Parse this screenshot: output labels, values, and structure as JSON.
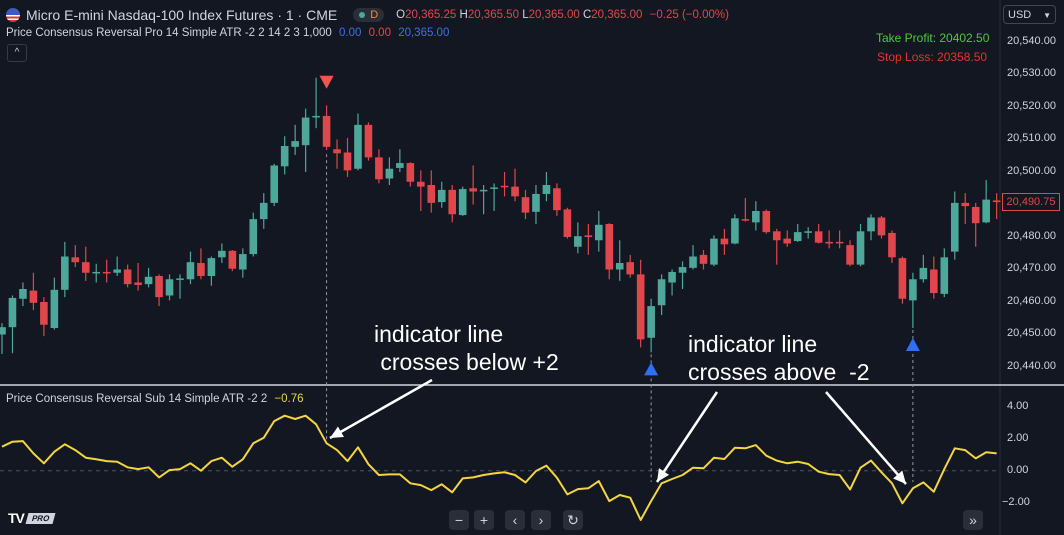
{
  "header": {
    "symbol_title": "Micro E-mini Nasdaq-100 Index Futures · 1 · CME",
    "session_badge": "D",
    "ohlc": {
      "o_label": "O",
      "o": "20,365.25",
      "h_label": "H",
      "h": "20,365.50",
      "l_label": "L",
      "l": "20,365.00",
      "c_label": "C",
      "c": "20,365.00",
      "change": "−0.25 (−0.00%)"
    },
    "indicator_main": {
      "name": "Price Consensus Reversal Pro 14 Simple ATR -2 2 14 2 3 1,000",
      "v1": "0.00",
      "v2": "0.00",
      "v3": "20,365.00"
    },
    "collapse_icon": "chevron-up-icon"
  },
  "currency": "USD",
  "take_profit": "Take Profit: 20402.50",
  "stop_loss": "Stop Loss: 20358.50",
  "price_axis": [
    "20,540.00",
    "20,530.00",
    "20,520.00",
    "20,510.00",
    "20,500.00",
    "20,480.00",
    "20,470.00",
    "20,460.00",
    "20,450.00",
    "20,440.00"
  ],
  "current_price": "20,490.75",
  "sub_pane": {
    "legend": "Price Consensus Reversal Sub 14 Simple ATR -2 2",
    "value": "−0.76",
    "axis": [
      "4.00",
      "2.00",
      "0.00",
      "−2.00"
    ]
  },
  "annotations": {
    "a1": "indicator line\n crosses below +2",
    "a2": "indicator line\ncrosses above  -2"
  },
  "toolbar": {
    "zoom_out": "−",
    "zoom_in": "+",
    "scroll_left": "‹",
    "scroll_right": "›",
    "reset": "↻",
    "go_latest": "»"
  },
  "logo": "TV PRO",
  "colors": {
    "bg": "#131722",
    "up": "#4ea79b",
    "down": "#e0474c",
    "indicator": "#f2d641",
    "buy": "#2f6ef5",
    "sell": "#f05650",
    "tp": "#4cc93b",
    "sl": "#e03535"
  },
  "chart_data": {
    "type": "candlestick",
    "ylim": [
      20437,
      20543
    ],
    "candles": [
      [
        20450,
        20453.5,
        20444,
        20452.25
      ],
      [
        20452.25,
        20462,
        20444.25,
        20461.25
      ],
      [
        20461,
        20466,
        20458.75,
        20464
      ],
      [
        20463.5,
        20469,
        20457.5,
        20459.75
      ],
      [
        20460,
        20461.5,
        20449.5,
        20453
      ],
      [
        20452,
        20467.5,
        20451.5,
        20463.75
      ],
      [
        20463.75,
        20478.5,
        20461.5,
        20474
      ],
      [
        20473.75,
        20477.5,
        20470.75,
        20472.25
      ],
      [
        20472.25,
        20477,
        20466.5,
        20469
      ],
      [
        20469,
        20471.75,
        20466,
        20469.25
      ],
      [
        20469.25,
        20473,
        20466,
        20469
      ],
      [
        20469,
        20474,
        20468,
        20470
      ],
      [
        20470,
        20471.5,
        20464.5,
        20465.5
      ],
      [
        20466,
        20472,
        20463.5,
        20465.25
      ],
      [
        20465.5,
        20470.5,
        20464.5,
        20467.75
      ],
      [
        20468,
        20468.5,
        20458.75,
        20461.5
      ],
      [
        20462,
        20468.5,
        20460.5,
        20467
      ],
      [
        20467,
        20468.5,
        20461,
        20467.25
      ],
      [
        20467,
        20475.5,
        20465.5,
        20472.25
      ],
      [
        20472,
        20476.5,
        20467,
        20468
      ],
      [
        20468,
        20474,
        20465,
        20473.5
      ],
      [
        20473.75,
        20478,
        20472,
        20475.75
      ],
      [
        20475.75,
        20476,
        20469.5,
        20470.25
      ],
      [
        20470,
        20476.5,
        20467.5,
        20474.75
      ],
      [
        20474.75,
        20487.5,
        20474,
        20485.5
      ],
      [
        20485.5,
        20493.5,
        20482.5,
        20490.5
      ],
      [
        20490.5,
        20502.5,
        20489.5,
        20502
      ],
      [
        20501.75,
        20511,
        20499.25,
        20508
      ],
      [
        20507.75,
        20514.5,
        20505.25,
        20509.5
      ],
      [
        20508.25,
        20519.5,
        20500,
        20516.75
      ],
      [
        20517,
        20529,
        20513.5,
        20517.25
      ],
      [
        20517.25,
        20520.5,
        20506.75,
        20507.75
      ],
      [
        20507,
        20510,
        20501,
        20505.75
      ],
      [
        20506,
        20510.5,
        20498.5,
        20500.5
      ],
      [
        20501,
        20518,
        20500.5,
        20514.5
      ],
      [
        20514.5,
        20515.25,
        20503.5,
        20504.5
      ],
      [
        20504.5,
        20507,
        20496.5,
        20497.75
      ],
      [
        20498,
        20504.5,
        20496,
        20501
      ],
      [
        20501.25,
        20507,
        20500,
        20502.75
      ],
      [
        20502.75,
        20503,
        20495.5,
        20497
      ],
      [
        20497,
        20500.5,
        20488,
        20495.5
      ],
      [
        20496,
        20500.5,
        20487.5,
        20490.5
      ],
      [
        20490.75,
        20497,
        20489,
        20494.5
      ],
      [
        20494.5,
        20496,
        20484.5,
        20487
      ],
      [
        20486.75,
        20495.5,
        20486.5,
        20494.75
      ],
      [
        20495,
        20502,
        20490,
        20494
      ],
      [
        20494.25,
        20496,
        20487,
        20494.5
      ],
      [
        20495,
        20496.5,
        20488,
        20495.25
      ],
      [
        20495.75,
        20500,
        20492.5,
        20495.5
      ],
      [
        20495.5,
        20501,
        20491,
        20492.5
      ],
      [
        20492.25,
        20494.5,
        20485.5,
        20487.5
      ],
      [
        20487.75,
        20496,
        20484,
        20493.25
      ],
      [
        20493.25,
        20500,
        20491,
        20496
      ],
      [
        20495,
        20496.5,
        20486.5,
        20488.25
      ],
      [
        20488.5,
        20489,
        20479.5,
        20480
      ],
      [
        20477,
        20484.5,
        20475,
        20480.25
      ],
      [
        20480.5,
        20484,
        20474.5,
        20480
      ],
      [
        20479,
        20488,
        20475.5,
        20483.75
      ],
      [
        20484,
        20484.25,
        20467,
        20470
      ],
      [
        20470,
        20479,
        20466.5,
        20472
      ],
      [
        20472.25,
        20474.5,
        20467.5,
        20468.5
      ],
      [
        20468.5,
        20473,
        20446,
        20448.5
      ],
      [
        20449,
        20461,
        20444.5,
        20458.75
      ],
      [
        20459,
        20468.5,
        20456,
        20467
      ],
      [
        20466,
        20470,
        20462,
        20469.25
      ],
      [
        20469,
        20472.5,
        20464,
        20470.75
      ],
      [
        20470.5,
        20477.5,
        20470,
        20474
      ],
      [
        20474.5,
        20476,
        20470,
        20471.75
      ],
      [
        20471.5,
        20480.5,
        20471,
        20479.5
      ],
      [
        20479.5,
        20482.5,
        20474.5,
        20477.75
      ],
      [
        20478,
        20487,
        20477.75,
        20485.75
      ],
      [
        20485.5,
        20492,
        20484.75,
        20485.25
      ],
      [
        20484.5,
        20491,
        20482,
        20488
      ],
      [
        20488,
        20488.5,
        20481,
        20481.5
      ],
      [
        20481.75,
        20482.5,
        20471.5,
        20479
      ],
      [
        20479.5,
        20482,
        20477,
        20478
      ],
      [
        20478.75,
        20484,
        20478.5,
        20481.5
      ],
      [
        20481.5,
        20483,
        20479.5,
        20481.75
      ],
      [
        20481.75,
        20484,
        20478,
        20478.25
      ],
      [
        20478.5,
        20482,
        20476.5,
        20478
      ],
      [
        20478.5,
        20482,
        20476.5,
        20478.25
      ],
      [
        20477.5,
        20479,
        20471,
        20471.5
      ],
      [
        20471.5,
        20484,
        20471,
        20481.75
      ],
      [
        20481.75,
        20487,
        20479,
        20486
      ],
      [
        20486,
        20486.5,
        20479.5,
        20480.5
      ],
      [
        20481.25,
        20482,
        20472,
        20473.75
      ],
      [
        20473.5,
        20474,
        20459.5,
        20461
      ],
      [
        20460.5,
        20469,
        20452,
        20467
      ],
      [
        20467,
        20474.5,
        20466,
        20470.5
      ],
      [
        20470,
        20474,
        20461,
        20462.75
      ],
      [
        20462.5,
        20476.5,
        20461.5,
        20473.75
      ],
      [
        20475.5,
        20494,
        20473,
        20490.5
      ],
      [
        20490.5,
        20493.5,
        20484,
        20489.5
      ],
      [
        20489.25,
        20490.5,
        20477,
        20484.25
      ],
      [
        20484.5,
        20497.5,
        20484.25,
        20491.5
      ],
      [
        20491.25,
        20493.5,
        20485.5,
        20490.75
      ]
    ],
    "signals": {
      "sell": [
        31
      ],
      "buy": [
        62,
        87
      ]
    },
    "indicator": {
      "name": "Price Consensus Reversal Sub",
      "ylim": [
        -3.5,
        4.5
      ],
      "levels": [
        0
      ],
      "values": [
        1.5,
        1.81,
        1.85,
        1.08,
        0.46,
        1.19,
        1.65,
        1.29,
        0.81,
        0.71,
        0.6,
        0.56,
        0.21,
        0.1,
        0.21,
        -0.42,
        0.04,
        0.1,
        0.46,
        0,
        0.6,
        0.81,
        0.25,
        0.71,
        1.71,
        2.06,
        3.1,
        3.44,
        3.23,
        3.44,
        2.9,
        1.71,
        1.29,
        0.6,
        1.46,
        0.4,
        -0.27,
        -0.23,
        -0.23,
        -0.79,
        -0.9,
        -1.21,
        -0.85,
        -1.35,
        -0.48,
        -0.42,
        -0.27,
        -0.17,
        -0.1,
        -0.27,
        -0.73,
        -0.02,
        0.31,
        -0.44,
        -1.48,
        -1.15,
        -1.1,
        -0.65,
        -1.9,
        -1.52,
        -1.69,
        -3.08,
        -1.9,
        -0.79,
        -0.52,
        -0.27,
        0.19,
        0.15,
        0.81,
        0.73,
        1.44,
        1.4,
        1.6,
        0.94,
        0.63,
        0.46,
        0.56,
        0.42,
        -0.06,
        -0.21,
        -0.27,
        -1.17,
        0.19,
        0.63,
        -0.1,
        -0.79,
        -2.04,
        -1.1,
        -0.73,
        -1.31,
        0.1,
        1.4,
        1.29,
        0.77,
        1.15,
        1.08
      ]
    }
  }
}
